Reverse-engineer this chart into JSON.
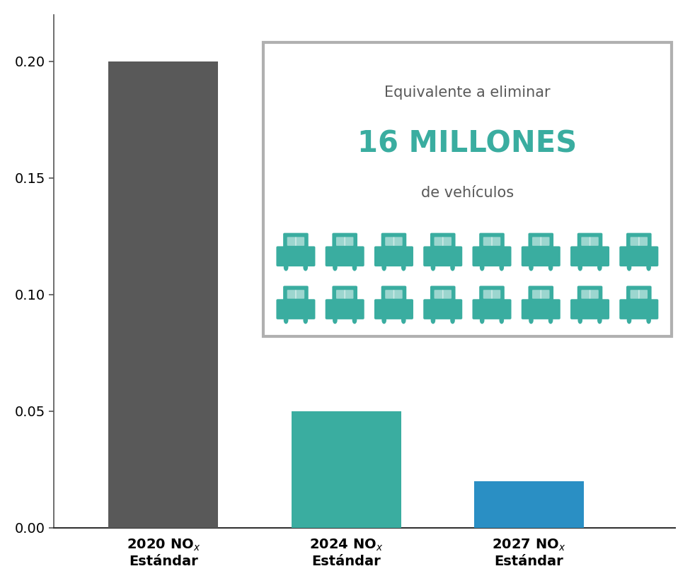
{
  "values": [
    0.2,
    0.05,
    0.02
  ],
  "bar_colors": [
    "#595959",
    "#3aada0",
    "#2a8fc4"
  ],
  "ylim": [
    0,
    0.22
  ],
  "yticks": [
    0.0,
    0.05,
    0.1,
    0.15,
    0.2
  ],
  "background_color": "#ffffff",
  "box_text1": "Equivalente a eliminar",
  "box_text2": "16 MILLONES",
  "box_text3": "de vehículos",
  "box_color_text1": "#595959",
  "box_color_text2": "#3aada0",
  "box_border_color": "#b0b0b0",
  "car_color": "#3aada0",
  "car_rows": 2,
  "car_cols": 8,
  "x_labels": [
    "2020 NO$_x$\nEstándar",
    "2024 NO$_x$\nEstándar",
    "2027 NO$_x$\nEstándar"
  ]
}
